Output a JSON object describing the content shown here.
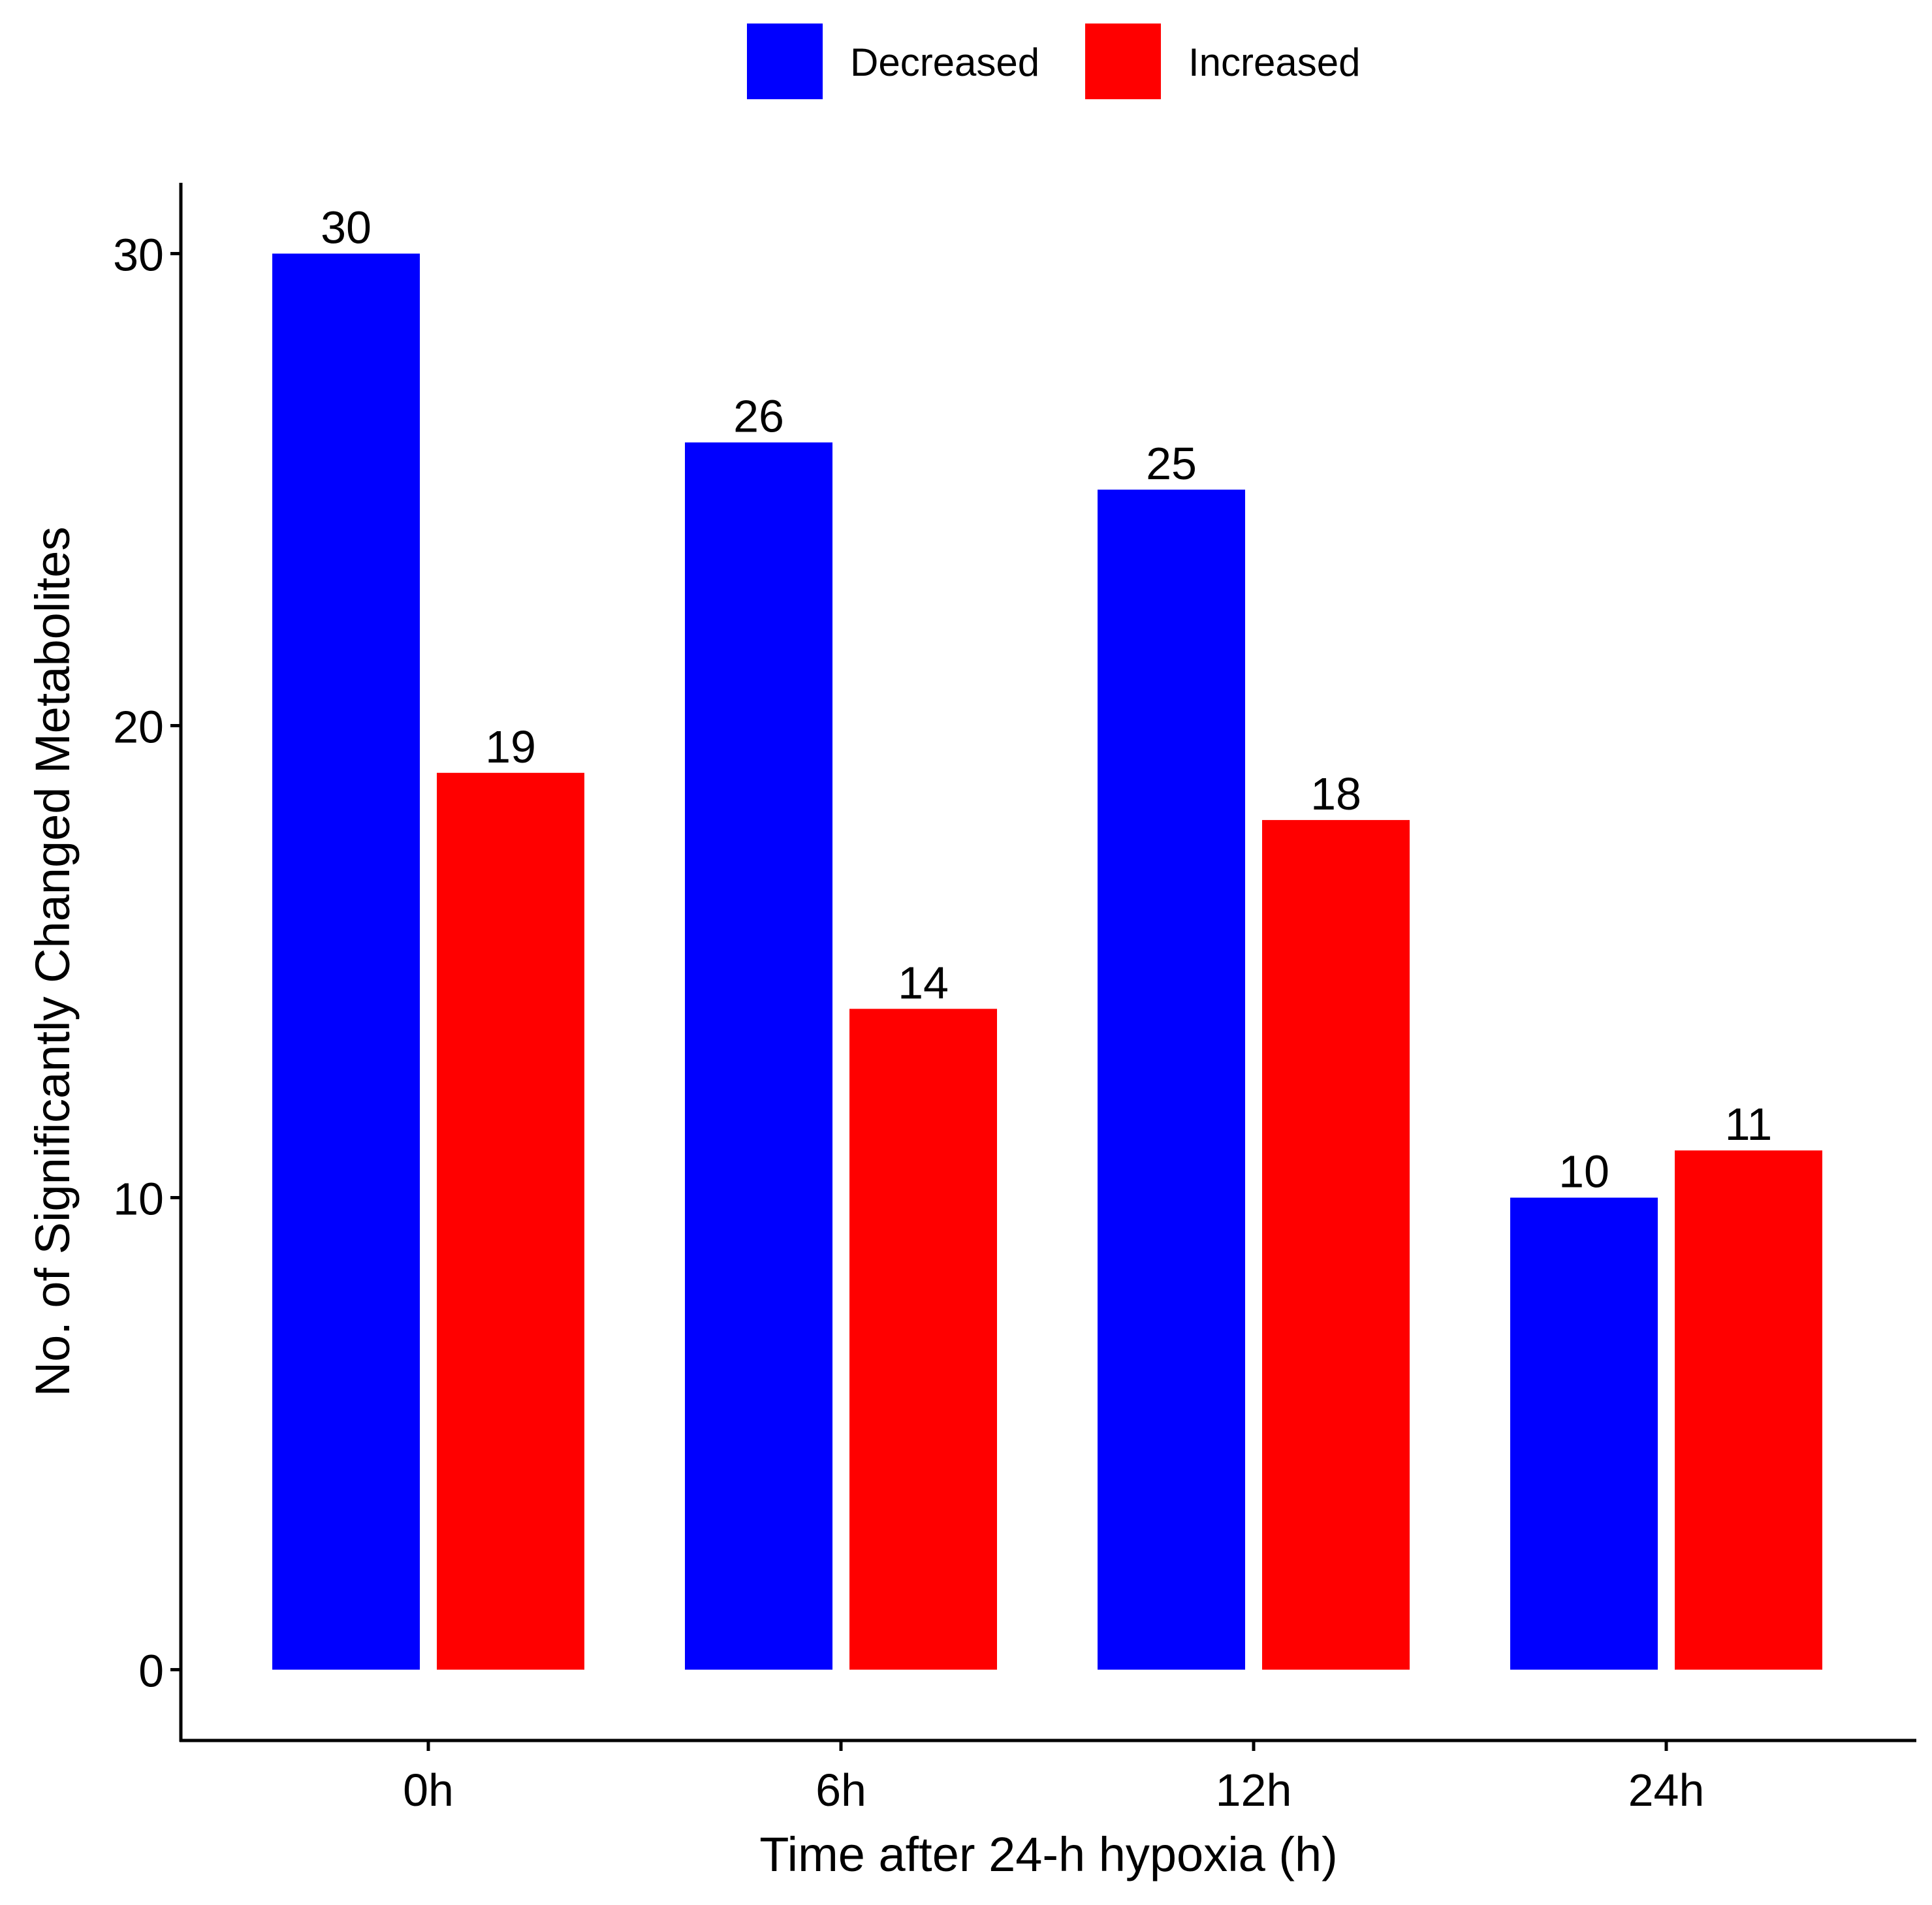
{
  "chart_data": {
    "type": "bar",
    "title": "",
    "xlabel": "Time after 24-h hypoxia (h)",
    "ylabel": "No. of Significantly Changed Metabolites",
    "categories": [
      "0h",
      "6h",
      "12h",
      "24h"
    ],
    "series": [
      {
        "name": "Decreased",
        "color": "#0000FF",
        "values": [
          30,
          26,
          25,
          10
        ]
      },
      {
        "name": "Increased",
        "color": "#FF0000",
        "values": [
          19,
          14,
          18,
          11
        ]
      }
    ],
    "ylim": [
      -1.5,
      31.5
    ],
    "yticks": [
      0,
      10,
      20,
      30
    ],
    "grid": false,
    "legend_position": "top-center",
    "data_labels": true
  }
}
